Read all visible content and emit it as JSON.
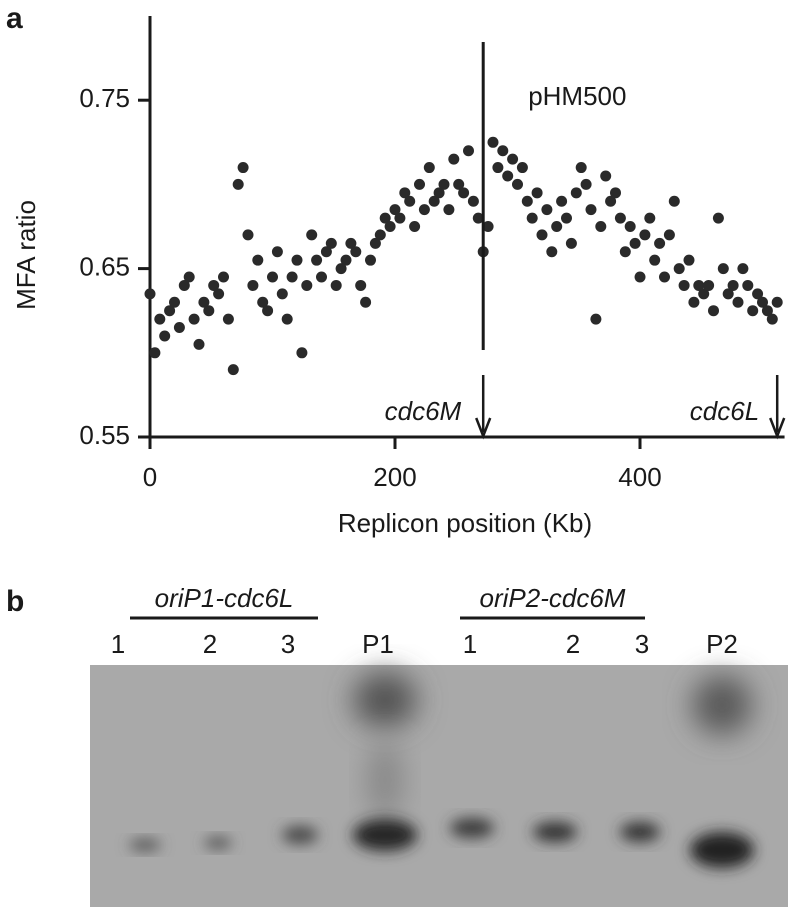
{
  "chart_data": {
    "type": "scatter",
    "panel_label": "a",
    "x_label": "Replicon position (Kb)",
    "y_label": "MFA ratio",
    "color": "#2a2a2a",
    "xlim": [
      0,
      518
    ],
    "ylim": [
      0.55,
      0.8
    ],
    "xticks": [
      0,
      200,
      400
    ],
    "yticks": [
      0.55,
      0.65,
      0.75
    ],
    "annotations": [
      {
        "text": "pHM500",
        "x": 272
      },
      {
        "text": "cdc6M",
        "x": 272
      },
      {
        "text": "cdc6L",
        "x": 512
      }
    ],
    "x": [
      0,
      4,
      8,
      12,
      16,
      20,
      24,
      28,
      32,
      36,
      40,
      44,
      48,
      52,
      56,
      60,
      64,
      68,
      72,
      76,
      80,
      84,
      88,
      92,
      96,
      100,
      104,
      108,
      112,
      116,
      120,
      124,
      128,
      132,
      136,
      140,
      144,
      148,
      152,
      156,
      160,
      164,
      168,
      172,
      176,
      180,
      184,
      188,
      192,
      196,
      200,
      204,
      208,
      212,
      216,
      220,
      224,
      228,
      232,
      236,
      240,
      244,
      248,
      252,
      256,
      260,
      264,
      268,
      272,
      276,
      280,
      284,
      288,
      292,
      296,
      300,
      304,
      308,
      312,
      316,
      320,
      324,
      328,
      332,
      336,
      340,
      344,
      348,
      352,
      356,
      360,
      364,
      368,
      372,
      376,
      380,
      384,
      388,
      392,
      396,
      400,
      404,
      408,
      412,
      416,
      420,
      424,
      428,
      432,
      436,
      440,
      444,
      448,
      452,
      456,
      460,
      464,
      468,
      472,
      476,
      480,
      484,
      488,
      492,
      496,
      500,
      504,
      508,
      512
    ],
    "values": [
      0.635,
      0.6,
      0.62,
      0.61,
      0.625,
      0.63,
      0.615,
      0.64,
      0.645,
      0.62,
      0.605,
      0.63,
      0.625,
      0.64,
      0.635,
      0.645,
      0.62,
      0.59,
      0.7,
      0.71,
      0.67,
      0.64,
      0.655,
      0.63,
      0.625,
      0.645,
      0.66,
      0.635,
      0.62,
      0.645,
      0.655,
      0.6,
      0.64,
      0.67,
      0.655,
      0.645,
      0.66,
      0.665,
      0.64,
      0.65,
      0.655,
      0.665,
      0.66,
      0.64,
      0.63,
      0.655,
      0.665,
      0.67,
      0.68,
      0.675,
      0.685,
      0.68,
      0.695,
      0.69,
      0.675,
      0.7,
      0.685,
      0.71,
      0.69,
      0.695,
      0.7,
      0.685,
      0.715,
      0.7,
      0.695,
      0.72,
      0.69,
      0.68,
      0.66,
      0.675,
      0.725,
      0.71,
      0.72,
      0.705,
      0.715,
      0.7,
      0.71,
      0.69,
      0.68,
      0.695,
      0.67,
      0.685,
      0.66,
      0.675,
      0.69,
      0.68,
      0.665,
      0.695,
      0.71,
      0.7,
      0.685,
      0.62,
      0.675,
      0.705,
      0.69,
      0.695,
      0.68,
      0.66,
      0.675,
      0.665,
      0.645,
      0.67,
      0.68,
      0.655,
      0.665,
      0.645,
      0.67,
      0.69,
      0.65,
      0.64,
      0.655,
      0.63,
      0.64,
      0.635,
      0.64,
      0.625,
      0.68,
      0.65,
      0.635,
      0.64,
      0.63,
      0.65,
      0.64,
      0.625,
      0.635,
      0.63,
      0.625,
      0.62,
      0.63
    ]
  },
  "gel": {
    "panel_label": "b",
    "groups": [
      "oriP1-cdc6L",
      "oriP2-cdc6M"
    ],
    "lanes": [
      "1",
      "2",
      "3",
      "P1",
      "1",
      "2",
      "3",
      "P2"
    ]
  }
}
